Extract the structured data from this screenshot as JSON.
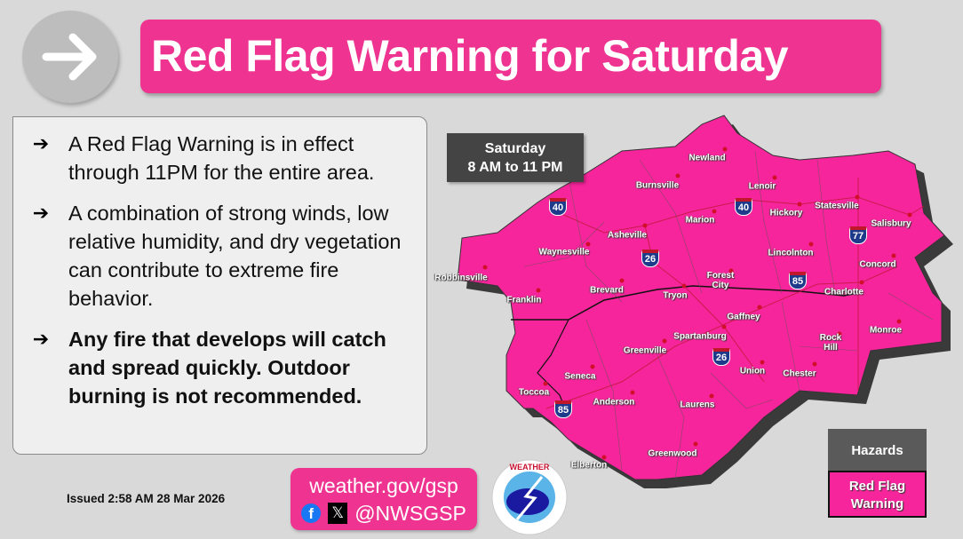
{
  "header": {
    "title": "Red Flag Warning for Saturday",
    "icon": "arrow-right-icon"
  },
  "bullets": [
    {
      "text": "A Red Flag Warning is in effect through 11PM for the entire area.",
      "bold": false
    },
    {
      "text": "A combination of strong winds, low relative humidity, and dry vegetation can contribute to extreme fire behavior.",
      "bold": false
    },
    {
      "text": "Any fire that develops will catch and spread quickly. Outdoor burning is not recommended.",
      "bold": true
    }
  ],
  "bullet_glyph": "➔",
  "issued": "Issued 2:58 AM 28 Mar 2026",
  "social": {
    "url": "weather.gov/gsp",
    "handle": "@NWSGSP",
    "fb": "f",
    "x": "𝕏"
  },
  "logo_text": "NATIONAL WEATHER SERVICE",
  "map": {
    "time_day": "Saturday",
    "time_range": "8 AM to 11 PM",
    "cities": [
      "Newland",
      "Burnsville",
      "Lenoir",
      "Asheville",
      "Marion",
      "Hickory",
      "Statesville",
      "Salisbury",
      "Waynesville",
      "Lincolnton",
      "Concord",
      "Robbinsville",
      "Forest City",
      "Charlotte",
      "Brevard",
      "Franklin",
      "Tryon",
      "Gaffney",
      "Monroe",
      "Rock Hill",
      "Spartanburg",
      "Greenville",
      "Union",
      "Chester",
      "Seneca",
      "Toccoa",
      "Anderson",
      "Laurens",
      "Greenwood",
      "Elberton"
    ],
    "interstates": [
      "40",
      "40",
      "26",
      "85",
      "77",
      "26",
      "85"
    ]
  },
  "legend": {
    "title": "Hazards",
    "item": "Red Flag Warning",
    "color": "#f7259b"
  },
  "colors": {
    "title_bg": "#ee3391",
    "map_fill": "#f7259b",
    "background": "#d9d9d9"
  }
}
